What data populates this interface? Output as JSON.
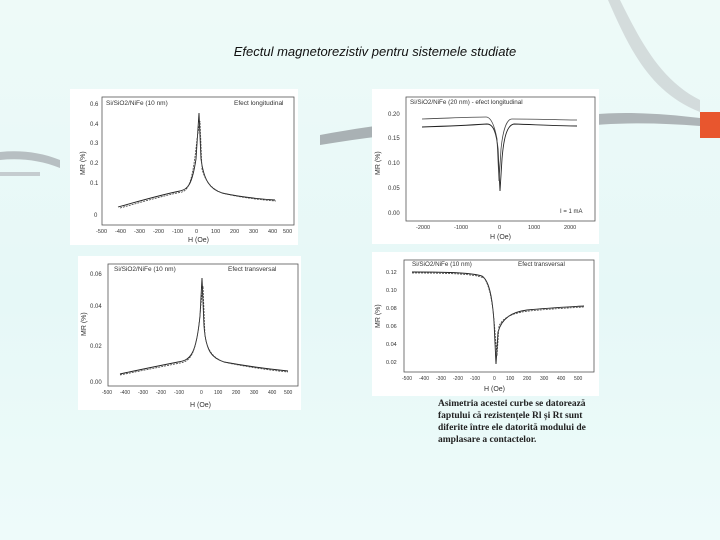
{
  "slide": {
    "title": "Efectul magnetorezistiv pentru sistemele studiate",
    "caption": "Asimetria acestei curbe se datorează faptului că rezistențele Rl și Rt sunt diferite între ele datorită modului de amplasare a contactelor."
  },
  "colors": {
    "accent_bar": "#e8562e",
    "deco_gray": "#9ea5a8",
    "background": "#e8f8f7"
  },
  "plots": [
    {
      "legend_left": "Si/SiO2/NiFe (10 nm)",
      "legend_right": "Efect longitudinal",
      "ylabel": "MR (%)",
      "xlabel": "H (Oe)",
      "yticks": [
        "0.6",
        "0.4",
        "0.3",
        "0.2",
        "0.1",
        "0"
      ],
      "xticks": [
        "-500",
        "-400",
        "-300",
        "-200",
        "-100",
        "0",
        "100",
        "200",
        "300",
        "400",
        "500"
      ]
    },
    {
      "legend_left": "Si/SiO2/NiFe (20 nm) - efect longitudinal",
      "legend_right": "",
      "ylabel": "MR (%)",
      "xlabel": "H (Oe)",
      "yticks": [
        "0.20",
        "0.15",
        "0.10",
        "0.05",
        "0.00"
      ],
      "xticks": [
        "-2000",
        "-1000",
        "0",
        "1000",
        "2000"
      ],
      "note": "I = 1 mA"
    },
    {
      "legend_left": "Si/SiO2/NiFe (10 nm)",
      "legend_right": "Efect transversal",
      "ylabel": "MR (%)",
      "xlabel": "H (Oe)",
      "yticks": [
        "0.06",
        "0.04",
        "0.02",
        "0.00"
      ],
      "xticks": [
        "-500",
        "-400",
        "-300",
        "-200",
        "-100",
        "0",
        "100",
        "200",
        "300",
        "400",
        "500"
      ]
    },
    {
      "legend_left": "Si/SiO2/NiFe (10 nm)",
      "legend_right": "Efect transversal",
      "ylabel": "MR (%)",
      "xlabel": "H (Oe)",
      "yticks": [
        "0.12",
        "0.10",
        "0.08",
        "0.06",
        "0.04",
        "0.02"
      ],
      "xticks": [
        "-500",
        "-400",
        "-300",
        "-200",
        "-100",
        "0",
        "100",
        "200",
        "300",
        "400",
        "500"
      ]
    }
  ]
}
